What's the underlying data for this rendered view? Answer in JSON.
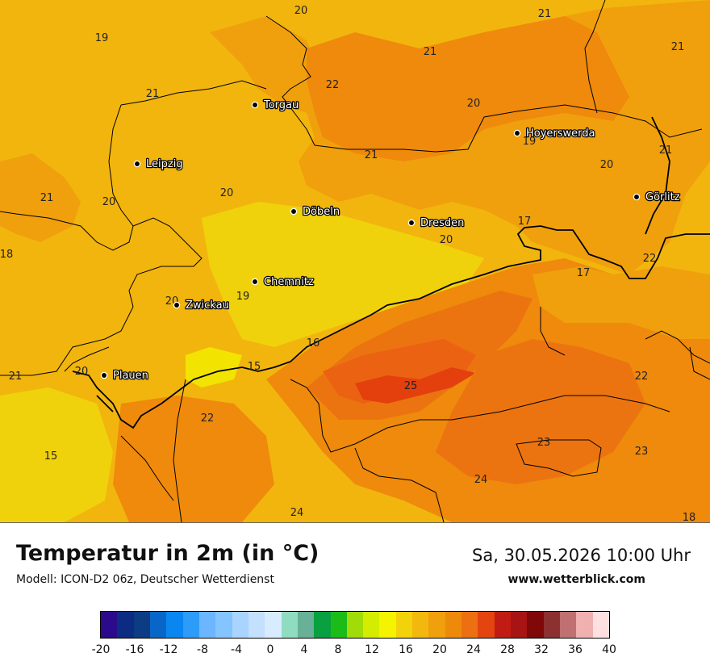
{
  "header": {
    "title": "Temperatur in 2m (in °C)",
    "subtitle": "Modell: ICON-D2 06z, Deutscher Wetterdienst",
    "datetime": "Sa, 30.05.2026 10:00 Uhr",
    "website": "www.wetterblick.com"
  },
  "colors": {
    "t15": "#f0d20c",
    "t18": "#f2c10d",
    "t20": "#f2b50e",
    "t21": "#f0a00c",
    "t22": "#ef8a0c",
    "t23": "#ec7410",
    "t24": "#ea6212",
    "t25": "#e4400e",
    "t16_bright": "#f2e400"
  },
  "cities": [
    {
      "name": "Torgau",
      "icon": "city-dot"
    },
    {
      "name": "Leipzig",
      "icon": "city-dot"
    },
    {
      "name": "Hoyerswerda",
      "icon": "city-dot"
    },
    {
      "name": "Döbeln",
      "icon": "city-dot"
    },
    {
      "name": "Dresden",
      "icon": "city-dot"
    },
    {
      "name": "Görlitz",
      "icon": "city-dot"
    },
    {
      "name": "Chemnitz",
      "icon": "city-dot"
    },
    {
      "name": "Zwickau",
      "icon": "city-dot"
    },
    {
      "name": "Plauen",
      "icon": "city-dot"
    }
  ],
  "temperatures": [
    "20",
    "21",
    "19",
    "21",
    "21",
    "22",
    "20",
    "21",
    "21",
    "19",
    "21",
    "20",
    "21",
    "20",
    "20",
    "17",
    "18",
    "20",
    "22",
    "17",
    "20",
    "19",
    "16",
    "15",
    "21",
    "20",
    "25",
    "22",
    "22",
    "23",
    "23",
    "15",
    "24",
    "24",
    "18"
  ],
  "legend": {
    "colors": [
      "#2c0a8c",
      "#0c2c84",
      "#0c3c84",
      "#0866c8",
      "#0a86f0",
      "#2c9cf8",
      "#6cb6ff",
      "#84c4ff",
      "#a8d4ff",
      "#c4e0ff",
      "#d8ecff",
      "#90dcc0",
      "#68b098",
      "#08a040",
      "#1cbc18",
      "#a0dc08",
      "#d4ec00",
      "#f4f400",
      "#f2d20a",
      "#f2b80e",
      "#f0a00c",
      "#ee8a0a",
      "#ec7012",
      "#e44410",
      "#c01c14",
      "#a81414",
      "#800808",
      "#8c3030",
      "#c07070",
      "#f0b0b0",
      "#ffe0e0"
    ],
    "ticks": [
      "-20",
      "-16",
      "-12",
      "-8",
      "-4",
      "0",
      "4",
      "8",
      "12",
      "16",
      "20",
      "24",
      "28",
      "32",
      "36",
      "40"
    ]
  }
}
